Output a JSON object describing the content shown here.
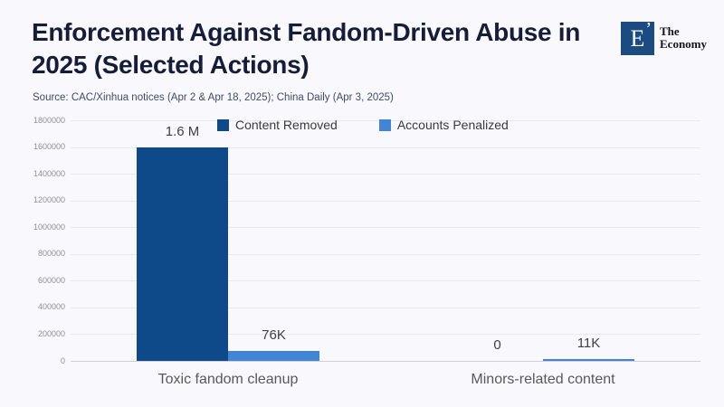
{
  "header": {
    "title_line1": "Enforcement Against Fandom-Driven Abuse in",
    "title_line2": "2025 (Selected Actions)",
    "logo": {
      "mark": "E",
      "accent": "’",
      "word_line1": "The",
      "word_line2": "Economy",
      "box_color": "#1b4b80"
    }
  },
  "source_note": "Source: CAC/Xinhua notices (Apr 2 & Apr 18, 2025); China Daily (Apr 3, 2025)",
  "chart_data": {
    "type": "bar",
    "title": "Enforcement Against Fandom-Driven Abuse in 2025 (Selected Actions)",
    "categories": [
      "Toxic fandom cleanup",
      "Minors-related content"
    ],
    "series": [
      {
        "name": "Content Removed",
        "color": "#0e4a89",
        "values": [
          1600000,
          0
        ],
        "labels": [
          "1.6 M",
          "0"
        ]
      },
      {
        "name": "Accounts Penalized",
        "color": "#4285d4",
        "values": [
          76000,
          11000
        ],
        "labels": [
          "76K",
          "11K"
        ]
      }
    ],
    "xlabel": "",
    "ylabel": "",
    "ylim": [
      0,
      1800000
    ],
    "ytick_step": 200000,
    "yticks": [
      "1800000",
      "1600000",
      "1400000",
      "1200000",
      "1000000",
      "800000",
      "600000",
      "400000",
      "200000",
      "0"
    ],
    "grid": true,
    "legend_position": "top",
    "accent_colors": {
      "dark_blue": "#0e4a89",
      "light_blue": "#4285d4",
      "background": "#f9f8fc"
    }
  }
}
